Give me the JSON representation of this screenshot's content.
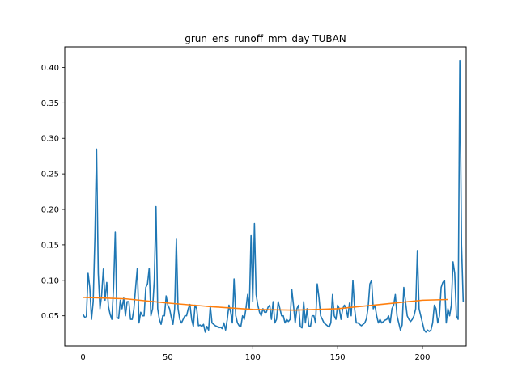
{
  "chart_data": {
    "type": "line",
    "title": "grun_ens_runoff_mm_day TUBAN",
    "xlabel": "",
    "ylabel": "",
    "xlim": [
      -10.75,
      225.75
    ],
    "ylim": [
      0.0075,
      0.429
    ],
    "x_ticks": [
      0,
      50,
      100,
      150,
      200
    ],
    "x_tick_labels": [
      "0",
      "50",
      "100",
      "150",
      "200"
    ],
    "y_ticks": [
      0.05,
      0.1,
      0.15,
      0.2,
      0.25,
      0.3,
      0.35,
      0.4
    ],
    "y_tick_labels": [
      "0.05",
      "0.10",
      "0.15",
      "0.20",
      "0.25",
      "0.30",
      "0.35",
      "0.40"
    ],
    "grid": false,
    "legend": "none",
    "series": [
      {
        "color": "#1f77b4",
        "values": [
          0.052,
          0.048,
          0.049,
          0.11,
          0.09,
          0.045,
          0.07,
          0.16,
          0.285,
          0.11,
          0.06,
          0.08,
          0.116,
          0.072,
          0.097,
          0.063,
          0.052,
          0.045,
          0.09,
          0.168,
          0.048,
          0.046,
          0.072,
          0.06,
          0.075,
          0.05,
          0.07,
          0.07,
          0.045,
          0.045,
          0.06,
          0.09,
          0.117,
          0.04,
          0.055,
          0.05,
          0.05,
          0.09,
          0.095,
          0.117,
          0.05,
          0.06,
          0.1,
          0.204,
          0.06,
          0.045,
          0.038,
          0.05,
          0.05,
          0.078,
          0.065,
          0.06,
          0.048,
          0.038,
          0.06,
          0.158,
          0.06,
          0.045,
          0.04,
          0.045,
          0.05,
          0.05,
          0.06,
          0.066,
          0.045,
          0.035,
          0.065,
          0.06,
          0.036,
          0.037,
          0.035,
          0.038,
          0.027,
          0.035,
          0.03,
          0.064,
          0.04,
          0.038,
          0.036,
          0.035,
          0.033,
          0.034,
          0.032,
          0.04,
          0.03,
          0.045,
          0.065,
          0.055,
          0.04,
          0.102,
          0.05,
          0.04,
          0.036,
          0.035,
          0.05,
          0.045,
          0.06,
          0.08,
          0.06,
          0.163,
          0.07,
          0.18,
          0.08,
          0.065,
          0.055,
          0.05,
          0.06,
          0.055,
          0.055,
          0.062,
          0.065,
          0.045,
          0.07,
          0.04,
          0.045,
          0.07,
          0.06,
          0.05,
          0.05,
          0.04,
          0.045,
          0.042,
          0.045,
          0.087,
          0.065,
          0.04,
          0.06,
          0.065,
          0.035,
          0.033,
          0.07,
          0.04,
          0.06,
          0.036,
          0.035,
          0.05,
          0.05,
          0.04,
          0.095,
          0.076,
          0.05,
          0.045,
          0.04,
          0.038,
          0.036,
          0.034,
          0.04,
          0.08,
          0.05,
          0.045,
          0.065,
          0.06,
          0.045,
          0.06,
          0.065,
          0.06,
          0.048,
          0.068,
          0.05,
          0.1,
          0.06,
          0.04,
          0.04,
          0.038,
          0.036,
          0.038,
          0.04,
          0.046,
          0.063,
          0.095,
          0.1,
          0.06,
          0.065,
          0.05,
          0.04,
          0.045,
          0.04,
          0.042,
          0.044,
          0.045,
          0.05,
          0.04,
          0.06,
          0.065,
          0.08,
          0.05,
          0.04,
          0.03,
          0.037,
          0.09,
          0.07,
          0.05,
          0.045,
          0.042,
          0.045,
          0.05,
          0.06,
          0.142,
          0.06,
          0.05,
          0.04,
          0.03,
          0.027,
          0.03,
          0.028,
          0.03,
          0.04,
          0.065,
          0.06,
          0.04,
          0.05,
          0.09,
          0.097,
          0.1,
          0.04,
          0.06,
          0.05,
          0.065,
          0.126,
          0.11,
          0.05,
          0.045,
          0.41,
          0.15,
          0.07
        ]
      },
      {
        "color": "#ff7f0e",
        "x": [
          0,
          25,
          50,
          75,
          100,
          125,
          150,
          175,
          200,
          215
        ],
        "values": [
          0.076,
          0.074,
          0.068,
          0.063,
          0.059,
          0.058,
          0.06,
          0.066,
          0.072,
          0.073
        ]
      }
    ]
  }
}
